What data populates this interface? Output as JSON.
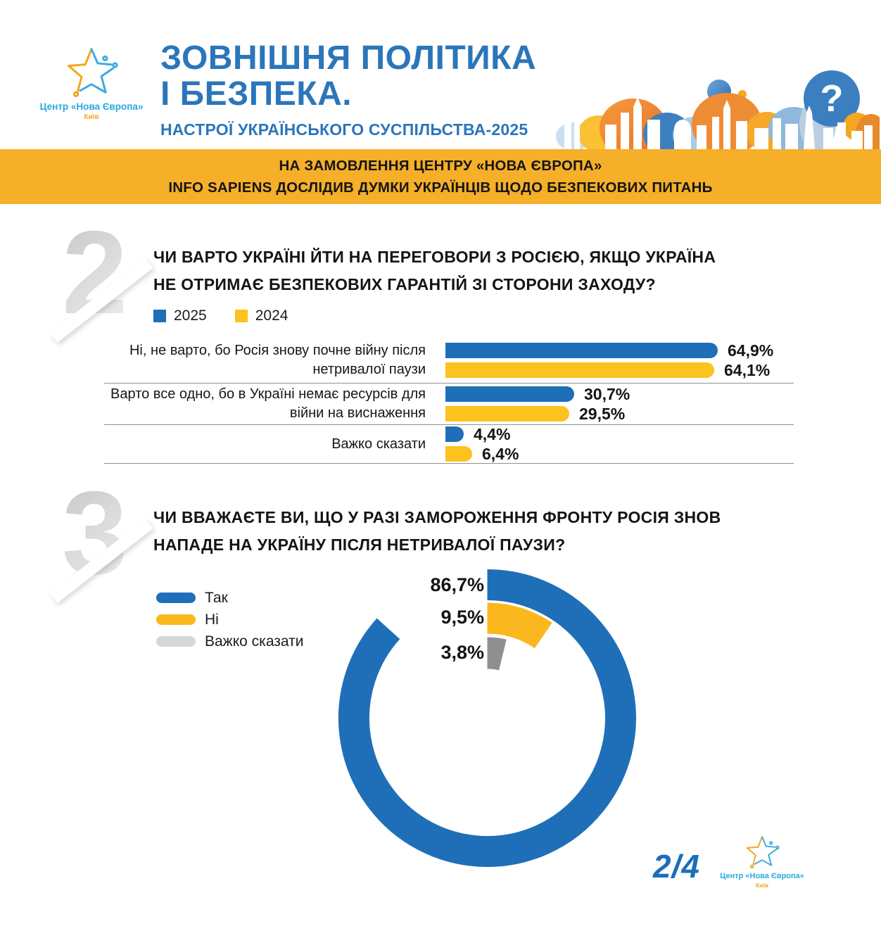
{
  "header": {
    "logo": {
      "org": "Центр «Нова Європа»",
      "city": "Київ"
    },
    "title_line1": "ЗОВНІШНЯ ПОЛІТИКА",
    "title_line2": "І БЕЗПЕКА.",
    "subtitle": "НАСТРОЇ УКРАЇНСЬКОГО СУСПІЛЬСТВА-2025"
  },
  "banner": {
    "line1": "НА ЗАМОВЛЕННЯ ЦЕНТРУ «НОВА ЄВРОПА»",
    "line2": "INFO SAPIENS ДОСЛІДИВ ДУМКИ УКРАЇНЦІВ ЩОДО БЕЗПЕКОВИХ ПИТАНЬ"
  },
  "section2": {
    "number": "2",
    "question_line1": "ЧИ ВАРТО УКРАЇНІ ЙТИ НА ПЕРЕГОВОРИ З РОСІЄЮ, ЯКЩО УКРАЇНА",
    "question_line2": "НЕ ОТРИМАЄ БЕЗПЕКОВИХ ГАРАНТІЙ ЗІ СТОРОНИ ЗАХОДУ?"
  },
  "section3": {
    "number": "3",
    "question_line1": "ЧИ ВВАЖАЄТЕ ВИ, ЩО У РАЗІ ЗАМОРОЖЕННЯ ФРОНТУ РОСІЯ ЗНОВ",
    "question_line2": "НАПАДЕ НА УКРАЇНУ ПІСЛЯ НЕТРИВАЛОЇ ПАУЗИ?"
  },
  "footer": {
    "page": "2/4",
    "logo": {
      "org": "Центр «Нова Європа»",
      "city": "Київ"
    }
  },
  "colors": {
    "blue": "#1E6FB8",
    "yellow_bar": "#FCC21D",
    "yellow_donut": "#FBB81E",
    "banner_bg": "#F5AF29",
    "title_blue": "#2B76BA",
    "gray_donut": "#8F8F91",
    "gray_legend": "#D6D7D8"
  },
  "chart_data": [
    {
      "type": "bar",
      "orientation": "horizontal",
      "title": "ЧИ ВАРТО УКРАЇНІ ЙТИ НА ПЕРЕГОВОРИ З РОСІЄЮ, ЯКЩО УКРАЇНА НЕ ОТРИМАЄ БЕЗПЕКОВИХ ГАРАНТІЙ ЗІ СТОРОНИ ЗАХОДУ?",
      "categories": [
        [
          "Ні, не варто, бо Росія знову почне війну після",
          "нетривалої паузи"
        ],
        [
          "Варто все одно, бо в Україні немає ресурсів для",
          "війни на виснаження"
        ],
        [
          "Важко сказати"
        ]
      ],
      "series": [
        {
          "name": "2025",
          "color": "#1E6FB8",
          "values": [
            64.9,
            30.7,
            4.4
          ],
          "labels": [
            "64,9%",
            "30,7%",
            "4,4%"
          ]
        },
        {
          "name": "2024",
          "color": "#FCC21D",
          "values": [
            64.1,
            29.5,
            6.4
          ],
          "labels": [
            "64,1%",
            "29,5%",
            "6,4%"
          ]
        }
      ],
      "xlim": [
        0,
        100
      ],
      "legend_position": "top-left",
      "grid": false
    },
    {
      "type": "pie",
      "style": "radial-donut",
      "title": "ЧИ ВВАЖАЄТЕ ВИ, ЩО У РАЗІ ЗАМОРОЖЕННЯ ФРОНТУ РОСІЯ ЗНОВ НАПАДЕ НА УКРАЇНУ ПІСЛЯ НЕТРИВАЛОЇ ПАУЗИ?",
      "segments": [
        {
          "label": "Так",
          "value": 86.7,
          "display": "86,7%",
          "color": "#1E6FB8"
        },
        {
          "label": "Ні",
          "value": 9.5,
          "display": "9,5%",
          "color": "#FBB81E"
        },
        {
          "label": "Важко сказати",
          "value": 3.8,
          "display": "3,8%",
          "color": "#8F8F91"
        }
      ],
      "legend": [
        {
          "label": "Так",
          "color": "#1E6FB8"
        },
        {
          "label": "Ні",
          "color": "#FBB81E"
        },
        {
          "label": "Важко сказати",
          "color": "#D6D7D8"
        }
      ],
      "legend_position": "left"
    }
  ]
}
